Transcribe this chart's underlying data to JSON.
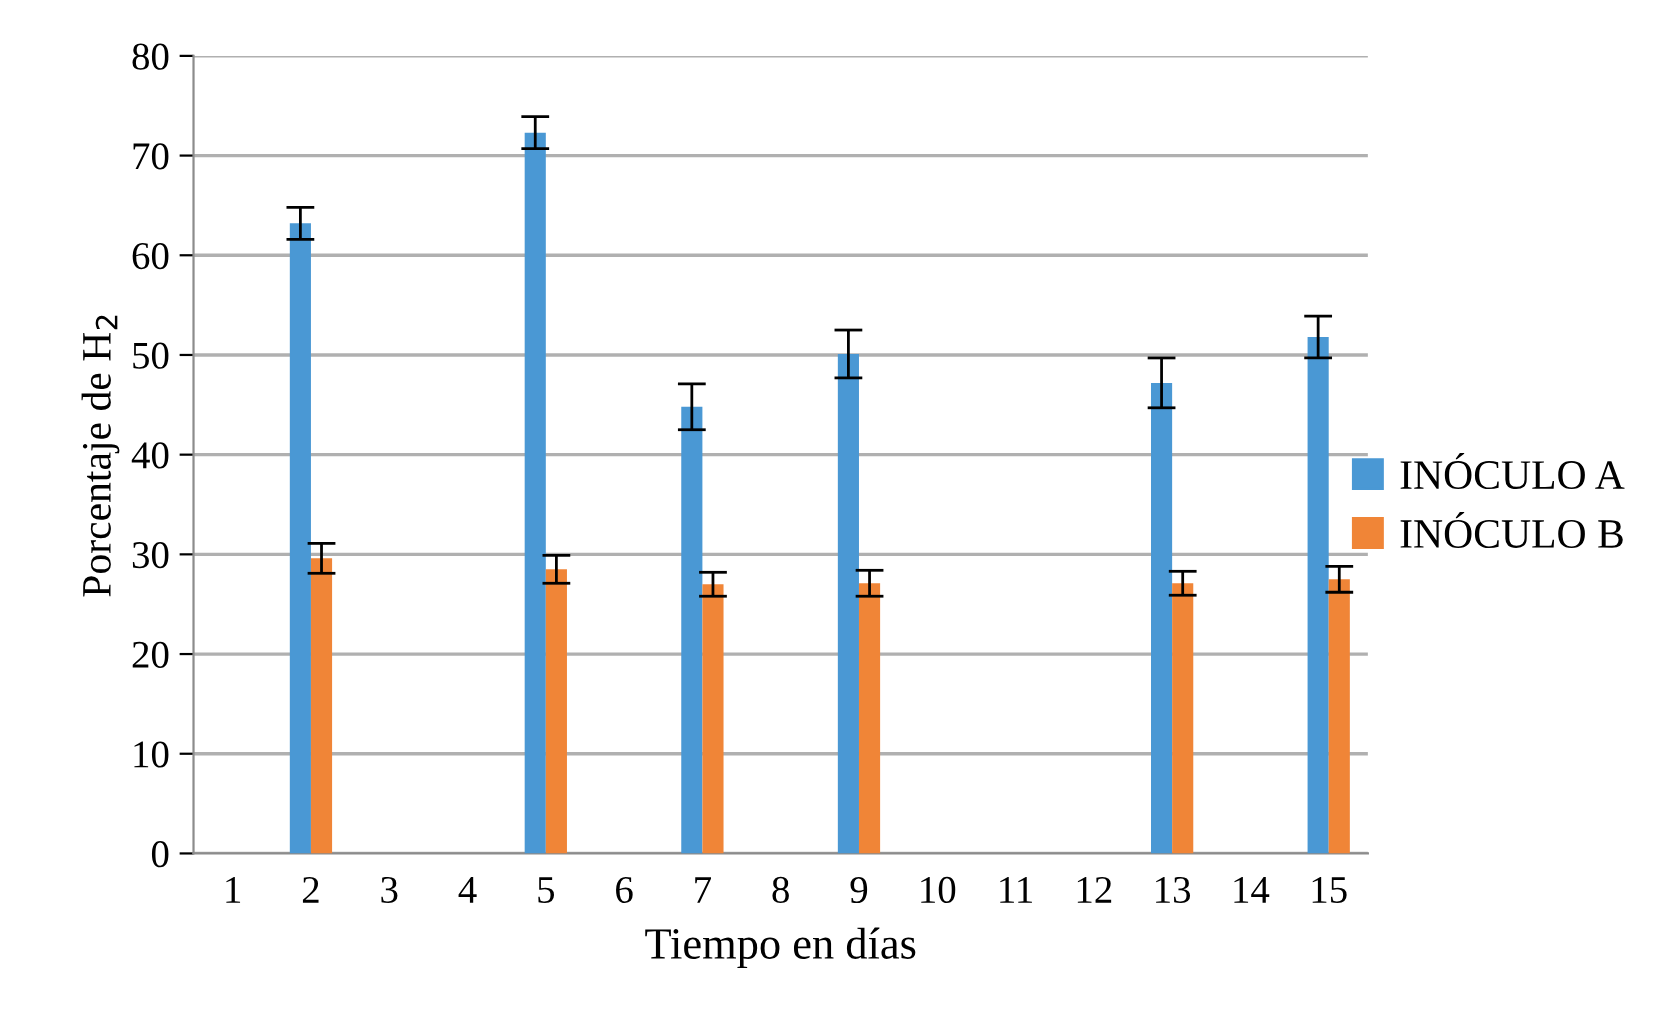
{
  "chart_data": {
    "type": "bar",
    "xlabel": "Tiempo en días",
    "ylabel": "Porcentaje de H$_{2}$",
    "categories": [
      "1",
      "2",
      "3",
      "4",
      "5",
      "6",
      "7",
      "8",
      "9",
      "10",
      "11",
      "12",
      "13",
      "14",
      "15"
    ],
    "series": [
      {
        "name": "INÓCULO A",
        "color": "#4a98d4",
        "values": [
          null,
          63.2,
          null,
          null,
          72.3,
          null,
          44.8,
          null,
          50.1,
          null,
          null,
          null,
          47.2,
          null,
          51.8
        ],
        "errors": [
          null,
          1.6,
          null,
          null,
          1.6,
          null,
          2.3,
          null,
          2.4,
          null,
          null,
          null,
          2.5,
          null,
          2.1
        ]
      },
      {
        "name": "INÓCULO B",
        "color": "#f08537",
        "values": [
          null,
          29.6,
          null,
          null,
          28.5,
          null,
          27.0,
          null,
          27.1,
          null,
          null,
          null,
          27.1,
          null,
          27.5
        ],
        "errors": [
          null,
          1.5,
          null,
          null,
          1.4,
          null,
          1.2,
          null,
          1.3,
          null,
          null,
          null,
          1.2,
          null,
          1.3
        ]
      }
    ],
    "ylim": [
      0,
      80
    ],
    "yticks": [
      0,
      10,
      20,
      30,
      40,
      50,
      60,
      70,
      80
    ],
    "grid": "y",
    "legend": "right"
  }
}
